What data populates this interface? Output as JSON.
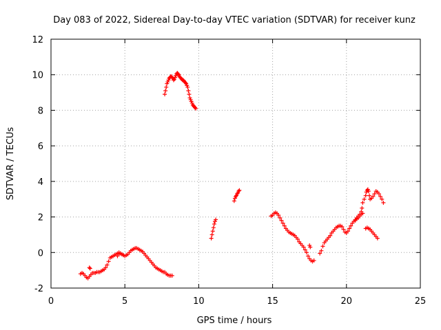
{
  "chart_data": {
    "type": "scatter",
    "title": "Day 083 of 2022, Sidereal Day-to-day VTEC variation (SDTVAR) for receiver kunz",
    "xlabel": "GPS time / hours",
    "ylabel": "SDTVAR / TECUs",
    "xlim": [
      0,
      25
    ],
    "ylim": [
      -2,
      12
    ],
    "xticks": [
      0,
      5,
      10,
      15,
      20,
      25
    ],
    "yticks": [
      -2,
      0,
      2,
      4,
      6,
      8,
      10,
      12
    ],
    "xtick_labels": [
      "0",
      "5",
      "10",
      "15",
      "20",
      "25"
    ],
    "ytick_labels": [
      "-2",
      "0",
      "2",
      "4",
      "6",
      "8",
      "10",
      "12"
    ],
    "grid": true,
    "marker": "+",
    "color": "#ff0000",
    "series": [
      {
        "name": "arc-1",
        "x": [
          2.0,
          2.1,
          2.2,
          2.3,
          2.4,
          2.5,
          2.6,
          2.7,
          2.8,
          2.9,
          3.0,
          3.1,
          3.2,
          3.3,
          3.4,
          3.5,
          3.6,
          3.7,
          3.8,
          3.9,
          4.0,
          4.1,
          4.2,
          4.3,
          4.4,
          4.5,
          4.6,
          4.7,
          4.8,
          4.9,
          5.0,
          5.1,
          5.2,
          5.3,
          5.4,
          5.5,
          5.6,
          5.7,
          5.8,
          5.9,
          6.0,
          6.1,
          6.2,
          6.3,
          6.4,
          6.5,
          6.6,
          6.7,
          6.8,
          6.9,
          7.0,
          7.1,
          7.2,
          7.3,
          7.4,
          7.5,
          7.6,
          7.7,
          7.8,
          7.9,
          8.0,
          8.1,
          8.2
        ],
        "y": [
          -1.2,
          -1.15,
          -1.2,
          -1.3,
          -1.4,
          -1.45,
          -1.35,
          -1.25,
          -1.15,
          -1.15,
          -1.15,
          -1.1,
          -1.1,
          -1.1,
          -1.05,
          -1.0,
          -0.95,
          -0.85,
          -0.7,
          -0.5,
          -0.3,
          -0.25,
          -0.2,
          -0.15,
          -0.1,
          -0.05,
          -0.0,
          -0.05,
          -0.1,
          -0.15,
          -0.2,
          -0.15,
          -0.1,
          0.0,
          0.1,
          0.15,
          0.2,
          0.25,
          0.25,
          0.2,
          0.15,
          0.1,
          0.05,
          -0.05,
          -0.15,
          -0.25,
          -0.35,
          -0.45,
          -0.55,
          -0.65,
          -0.75,
          -0.85,
          -0.9,
          -0.95,
          -1.0,
          -1.05,
          -1.1,
          -1.1,
          -1.2,
          -1.25,
          -1.3,
          -1.3,
          -1.3
        ]
      },
      {
        "name": "arc-2",
        "x": [
          2.6,
          2.65,
          4.5,
          4.6,
          4.7,
          4.8,
          4.9
        ],
        "y": [
          -0.85,
          -0.9,
          -0.2,
          -0.1,
          -0.05,
          -0.1,
          -0.15
        ]
      },
      {
        "name": "arc-3",
        "x": [
          7.7,
          7.75,
          7.8,
          7.85,
          7.9,
          7.95,
          8.0,
          8.05,
          8.1,
          8.15,
          8.2,
          8.25,
          8.3,
          8.35,
          8.4,
          8.45,
          8.5,
          8.55,
          8.6,
          8.65,
          8.7,
          8.75,
          8.8,
          8.85,
          8.9,
          8.95,
          9.0,
          9.05,
          9.1,
          9.15,
          9.2,
          9.25,
          9.3,
          9.35,
          9.4,
          9.45,
          9.5,
          9.55,
          9.6,
          9.65,
          9.7,
          9.75,
          9.8
        ],
        "y": [
          8.9,
          9.1,
          9.3,
          9.5,
          9.6,
          9.7,
          9.8,
          9.85,
          9.9,
          9.9,
          9.85,
          9.8,
          9.7,
          9.75,
          9.85,
          9.95,
          10.05,
          10.1,
          10.05,
          10.0,
          9.9,
          9.85,
          9.8,
          9.75,
          9.7,
          9.7,
          9.65,
          9.6,
          9.55,
          9.5,
          9.4,
          9.3,
          9.1,
          8.9,
          8.7,
          8.6,
          8.5,
          8.4,
          8.3,
          8.25,
          8.2,
          8.15,
          8.1
        ]
      },
      {
        "name": "arc-4",
        "x": [
          10.85,
          10.9,
          10.95,
          11.0,
          11.05,
          11.1,
          11.15
        ],
        "y": [
          0.8,
          1.0,
          1.2,
          1.4,
          1.6,
          1.75,
          1.85
        ]
      },
      {
        "name": "arc-5",
        "x": [
          12.4,
          12.45,
          12.5,
          12.55,
          12.6,
          12.65,
          12.7,
          12.75
        ],
        "y": [
          2.9,
          3.05,
          3.15,
          3.2,
          3.3,
          3.35,
          3.45,
          3.5
        ]
      },
      {
        "name": "arc-6",
        "x": [
          14.9,
          15.0,
          15.1,
          15.2,
          15.3,
          15.4,
          15.5,
          15.6,
          15.7,
          15.8,
          15.9,
          16.0,
          16.1,
          16.2,
          16.3,
          16.4,
          16.5,
          16.6,
          16.7,
          16.8,
          16.9,
          17.0,
          17.1,
          17.2,
          17.3,
          17.4,
          17.5,
          17.6,
          17.7,
          17.8
        ],
        "y": [
          2.05,
          2.1,
          2.2,
          2.25,
          2.2,
          2.1,
          1.95,
          1.8,
          1.65,
          1.5,
          1.35,
          1.25,
          1.15,
          1.1,
          1.05,
          1.0,
          0.95,
          0.85,
          0.75,
          0.6,
          0.5,
          0.4,
          0.3,
          0.15,
          0.0,
          -0.2,
          -0.35,
          -0.45,
          -0.5,
          -0.45
        ]
      },
      {
        "name": "arc-7",
        "x": [
          17.5,
          17.55,
          18.2,
          18.3,
          18.4,
          18.5,
          18.6,
          18.7,
          18.8,
          18.9,
          19.0,
          19.1,
          19.2,
          19.3,
          19.4,
          19.5,
          19.6,
          19.7,
          19.8,
          19.9,
          20.0,
          20.1,
          20.2,
          20.3,
          20.4,
          20.5,
          20.6,
          20.7,
          20.8,
          20.9,
          21.0,
          21.1
        ],
        "y": [
          0.4,
          0.3,
          -0.05,
          0.1,
          0.35,
          0.55,
          0.65,
          0.75,
          0.85,
          0.95,
          1.1,
          1.2,
          1.3,
          1.4,
          1.45,
          1.5,
          1.5,
          1.45,
          1.3,
          1.15,
          1.1,
          1.2,
          1.35,
          1.5,
          1.65,
          1.75,
          1.85,
          1.9,
          1.95,
          2.05,
          2.15,
          2.2
        ]
      },
      {
        "name": "arc-8",
        "x": [
          20.6,
          20.7,
          20.8,
          20.9,
          21.0,
          21.05,
          21.1,
          21.2,
          21.3,
          21.35,
          21.4,
          21.45,
          21.5,
          21.55,
          21.6,
          21.7,
          21.8,
          21.9,
          22.0,
          22.1,
          22.2,
          22.3,
          22.4,
          22.5
        ],
        "y": [
          1.8,
          1.95,
          2.05,
          2.15,
          2.3,
          2.5,
          2.8,
          3.0,
          3.2,
          3.4,
          3.5,
          3.55,
          3.45,
          3.2,
          3.0,
          3.05,
          3.15,
          3.3,
          3.45,
          3.4,
          3.3,
          3.15,
          3.0,
          2.8
        ]
      },
      {
        "name": "arc-9",
        "x": [
          21.3,
          21.4,
          21.5,
          21.6,
          21.7,
          21.8,
          21.9,
          22.0,
          22.1
        ],
        "y": [
          1.35,
          1.4,
          1.35,
          1.3,
          1.2,
          1.1,
          1.0,
          0.9,
          0.8
        ]
      }
    ]
  }
}
